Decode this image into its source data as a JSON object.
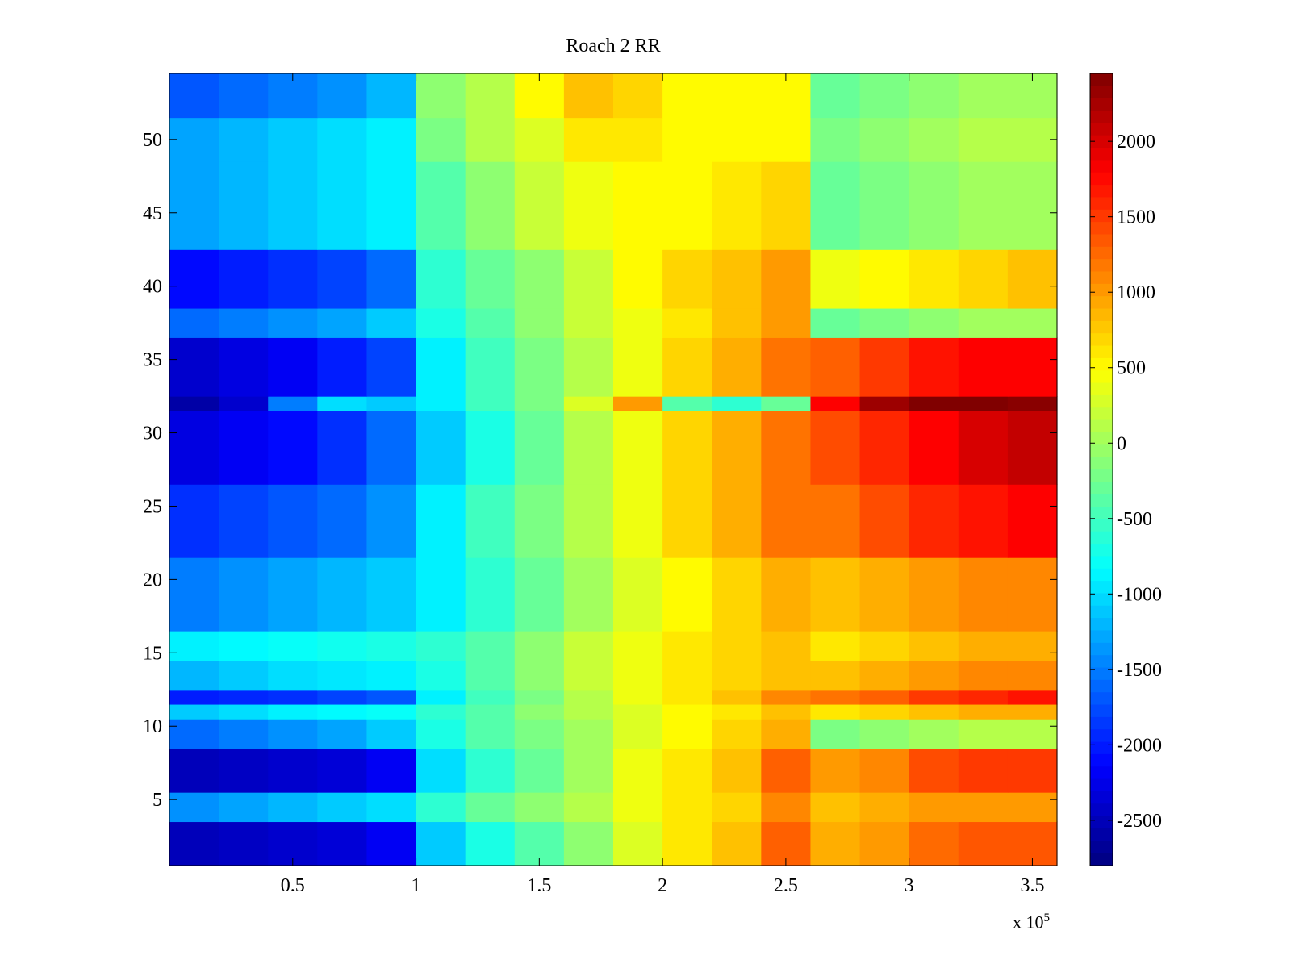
{
  "chart_data": {
    "type": "heatmap",
    "title": "Roach 2 RR",
    "xlabel": "",
    "ylabel": "",
    "x_multiplier_label": {
      "prefix": "x 10",
      "exponent": "5"
    },
    "xlim": [
      0,
      3.6
    ],
    "ylim": [
      0.5,
      54.5
    ],
    "x_ticks": [
      {
        "value": 0.5,
        "label": "0.5"
      },
      {
        "value": 1,
        "label": "1"
      },
      {
        "value": 1.5,
        "label": "1.5"
      },
      {
        "value": 2,
        "label": "2"
      },
      {
        "value": 2.5,
        "label": "2.5"
      },
      {
        "value": 3,
        "label": "3"
      },
      {
        "value": 3.5,
        "label": "3.5"
      }
    ],
    "y_ticks": [
      {
        "value": 5,
        "label": "5"
      },
      {
        "value": 10,
        "label": "10"
      },
      {
        "value": 15,
        "label": "15"
      },
      {
        "value": 20,
        "label": "20"
      },
      {
        "value": 25,
        "label": "25"
      },
      {
        "value": 30,
        "label": "30"
      },
      {
        "value": 35,
        "label": "35"
      },
      {
        "value": 40,
        "label": "40"
      },
      {
        "value": 45,
        "label": "45"
      },
      {
        "value": 50,
        "label": "50"
      }
    ],
    "colorbar": {
      "colormap": "jet",
      "range": [
        -2800,
        2450
      ],
      "ticks": [
        {
          "value": -2500,
          "label": "-2500"
        },
        {
          "value": -2000,
          "label": "-2000"
        },
        {
          "value": -1500,
          "label": "-1500"
        },
        {
          "value": -1000,
          "label": "-1000"
        },
        {
          "value": -500,
          "label": "-500"
        },
        {
          "value": 0,
          "label": "0"
        },
        {
          "value": 500,
          "label": "500"
        },
        {
          "value": 1000,
          "label": "1000"
        },
        {
          "value": 1500,
          "label": "1500"
        },
        {
          "value": 2000,
          "label": "2000"
        }
      ]
    },
    "column_x_centers": [
      0.1,
      0.3,
      0.5,
      0.7,
      0.9,
      1.1,
      1.3,
      1.5,
      1.7,
      1.9,
      2.1,
      2.3,
      2.5,
      2.7,
      2.9,
      3.1,
      3.3,
      3.5
    ],
    "row_groups": [
      {
        "rows": [
          1,
          3
        ],
        "values": [
          -2500,
          -2450,
          -2400,
          -2350,
          -2200,
          -1100,
          -700,
          -400,
          -100,
          300,
          600,
          800,
          1300,
          900,
          1000,
          1250,
          1350,
          1350
        ]
      },
      {
        "rows": [
          4,
          5
        ],
        "values": [
          -1400,
          -1300,
          -1200,
          -1100,
          -1000,
          -600,
          -300,
          -100,
          100,
          400,
          600,
          700,
          1100,
          800,
          900,
          1000,
          1000,
          1000
        ]
      },
      {
        "rows": [
          6,
          8
        ],
        "values": [
          -2500,
          -2450,
          -2400,
          -2350,
          -2200,
          -1000,
          -600,
          -300,
          0,
          400,
          600,
          800,
          1300,
          1000,
          1100,
          1400,
          1500,
          1500
        ]
      },
      {
        "rows": [
          9,
          10
        ],
        "values": [
          -1600,
          -1500,
          -1400,
          -1300,
          -1100,
          -700,
          -400,
          -200,
          0,
          300,
          500,
          700,
          900,
          -200,
          -100,
          0,
          100,
          100
        ]
      },
      {
        "rows": [
          11,
          11
        ],
        "values": [
          -1100,
          -1000,
          -900,
          -850,
          -800,
          -600,
          -400,
          -100,
          100,
          300,
          500,
          600,
          800,
          600,
          700,
          800,
          900,
          900
        ]
      },
      {
        "rows": [
          12,
          12
        ],
        "values": [
          -2000,
          -1950,
          -1900,
          -1800,
          -1700,
          -900,
          -500,
          -200,
          100,
          400,
          600,
          800,
          1100,
          1200,
          1300,
          1500,
          1600,
          1700
        ]
      },
      {
        "rows": [
          13,
          14
        ],
        "values": [
          -1200,
          -1100,
          -1000,
          -950,
          -900,
          -700,
          -400,
          -100,
          200,
          400,
          600,
          700,
          800,
          800,
          900,
          1000,
          1100,
          1100
        ]
      },
      {
        "rows": [
          15,
          16
        ],
        "values": [
          -900,
          -850,
          -800,
          -750,
          -700,
          -600,
          -400,
          -100,
          200,
          400,
          600,
          700,
          800,
          600,
          700,
          800,
          900,
          900
        ]
      },
      {
        "rows": [
          17,
          21
        ],
        "values": [
          -1500,
          -1400,
          -1300,
          -1200,
          -1100,
          -900,
          -600,
          -300,
          0,
          300,
          500,
          700,
          900,
          800,
          900,
          1000,
          1100,
          1100
        ]
      },
      {
        "rows": [
          22,
          26
        ],
        "values": [
          -1900,
          -1800,
          -1700,
          -1600,
          -1400,
          -900,
          -500,
          -200,
          100,
          400,
          700,
          900,
          1200,
          1200,
          1400,
          1600,
          1700,
          1800
        ]
      },
      {
        "rows": [
          27,
          31
        ],
        "values": [
          -2300,
          -2200,
          -2100,
          -1900,
          -1600,
          -1100,
          -700,
          -300,
          100,
          400,
          700,
          900,
          1200,
          1400,
          1600,
          1800,
          2000,
          2100
        ]
      },
      {
        "rows": [
          32,
          32
        ],
        "values": [
          -2600,
          -2400,
          -1500,
          -1000,
          -1100,
          -900,
          -500,
          -200,
          300,
          1000,
          -400,
          -600,
          -300,
          1800,
          2300,
          2500,
          2500,
          2400
        ]
      },
      {
        "rows": [
          33,
          36
        ],
        "values": [
          -2400,
          -2300,
          -2200,
          -2000,
          -1800,
          -900,
          -500,
          -200,
          100,
          400,
          700,
          900,
          1200,
          1300,
          1500,
          1700,
          1800,
          1800
        ]
      },
      {
        "rows": [
          37,
          38
        ],
        "values": [
          -1600,
          -1500,
          -1400,
          -1300,
          -1100,
          -700,
          -400,
          -100,
          200,
          400,
          600,
          800,
          1000,
          -300,
          -200,
          -100,
          0,
          0
        ]
      },
      {
        "rows": [
          39,
          42
        ],
        "values": [
          -2100,
          -2000,
          -1900,
          -1800,
          -1600,
          -600,
          -300,
          -100,
          200,
          500,
          700,
          800,
          1000,
          400,
          500,
          600,
          700,
          800
        ]
      },
      {
        "rows": [
          43,
          48
        ],
        "values": [
          -1300,
          -1200,
          -1100,
          -1000,
          -900,
          -400,
          -100,
          200,
          400,
          500,
          500,
          600,
          700,
          -300,
          -200,
          -100,
          0,
          0
        ]
      },
      {
        "rows": [
          49,
          51
        ],
        "values": [
          -1300,
          -1200,
          -1100,
          -1000,
          -900,
          -200,
          100,
          300,
          600,
          600,
          500,
          500,
          500,
          -200,
          -100,
          0,
          100,
          100
        ]
      },
      {
        "rows": [
          52,
          54
        ],
        "values": [
          -1700,
          -1600,
          -1500,
          -1400,
          -1200,
          -100,
          100,
          500,
          800,
          700,
          500,
          500,
          500,
          -300,
          -200,
          -100,
          0,
          0
        ]
      }
    ]
  }
}
